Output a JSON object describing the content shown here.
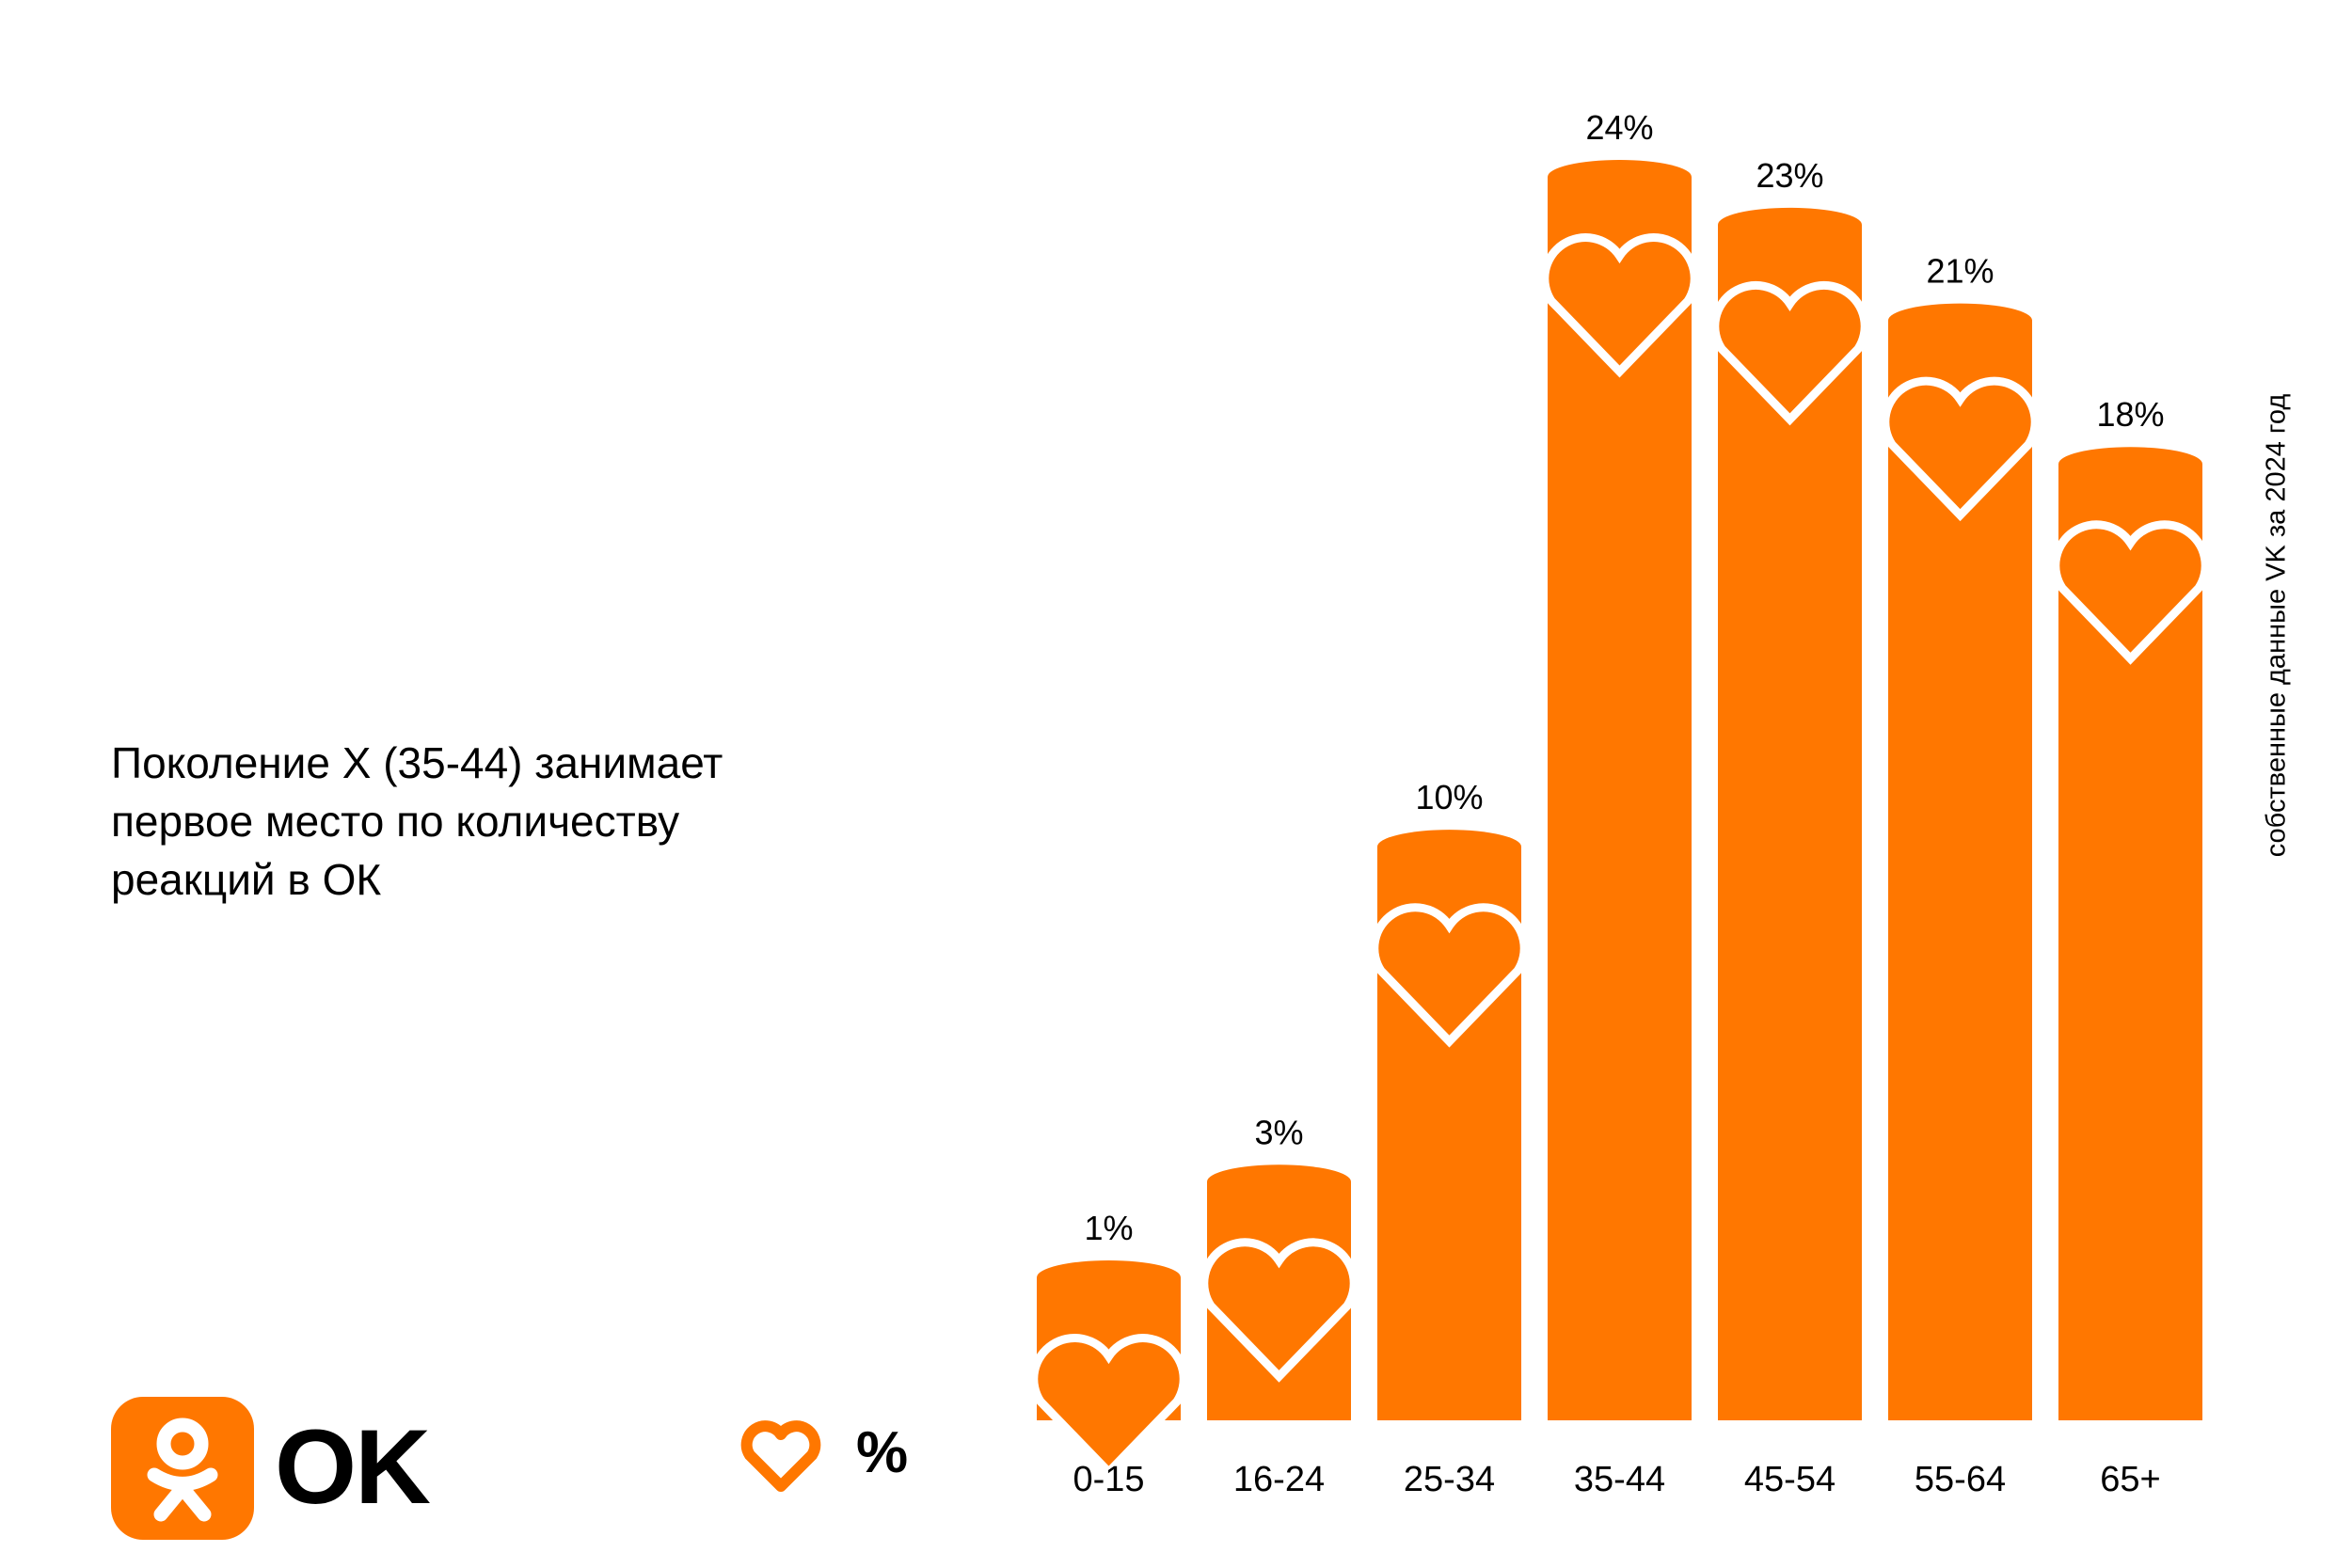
{
  "headline": {
    "line1": "Поколение X (35-44) занимает",
    "line2": "первое место по количеству",
    "line3": "реакций в ОК"
  },
  "source_note": "собственные данные VK за 2024 год",
  "brand": {
    "name": "OK",
    "accent": "#ff7700"
  },
  "legend": {
    "icon": "heart-icon",
    "label": "%"
  },
  "chart_data": {
    "type": "bar",
    "categories": [
      "0-15",
      "16-24",
      "25-34",
      "35-44",
      "45-54",
      "55-64",
      "65+"
    ],
    "values": [
      1,
      3,
      10,
      24,
      23,
      21,
      18
    ],
    "value_labels": [
      "1%",
      "3%",
      "10%",
      "24%",
      "23%",
      "21%",
      "18%"
    ],
    "unit": "%",
    "bar_color": "#ff7700",
    "marker_icon": "heart-icon",
    "grid": false
  }
}
